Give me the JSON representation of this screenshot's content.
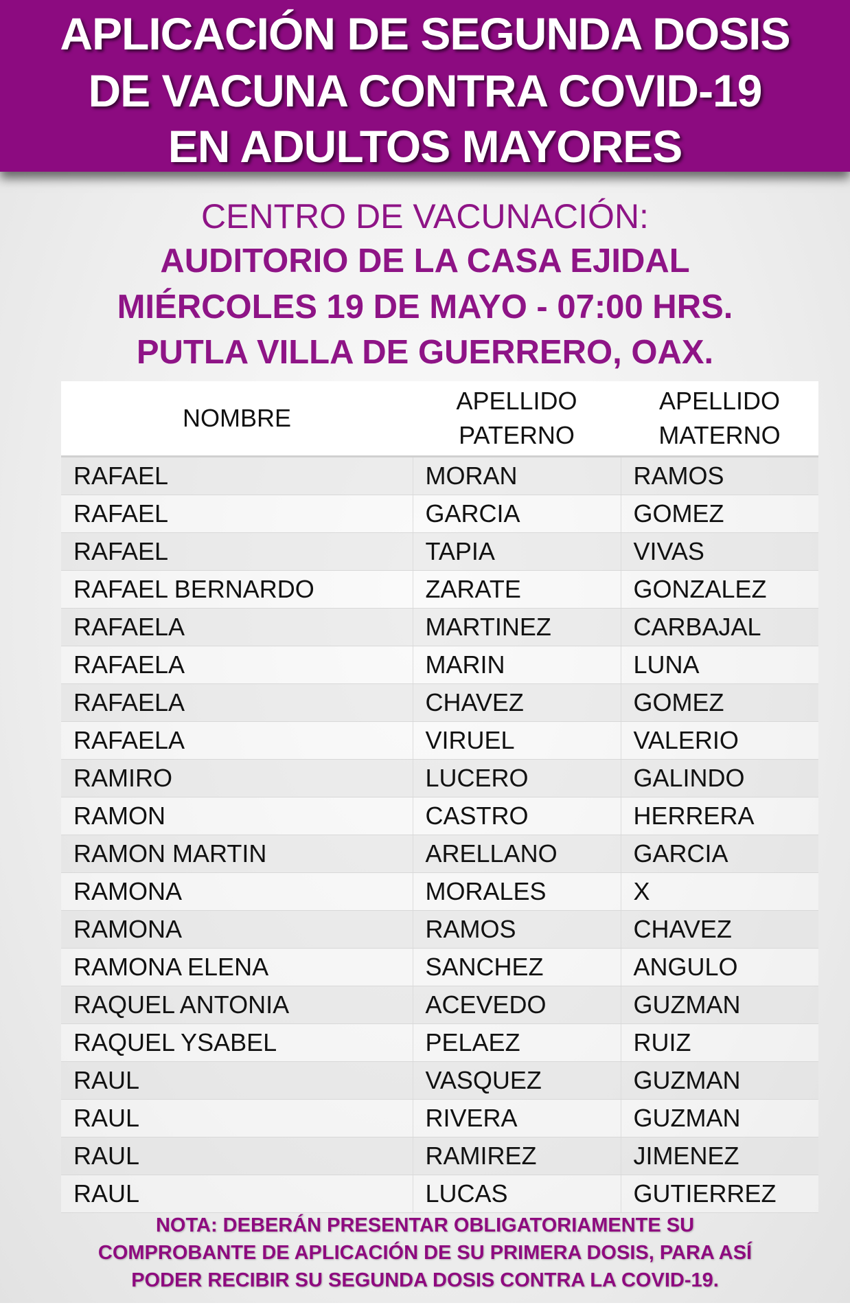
{
  "colors": {
    "banner": "#8c0b80",
    "accent": "#8e1486"
  },
  "header": {
    "lines": [
      "APLICACIÓN DE SEGUNDA DOSIS",
      "DE VACUNA CONTRA COVID-19",
      "EN ADULTOS MAYORES"
    ]
  },
  "info": {
    "center_label": "CENTRO DE VACUNACIÓN:",
    "venue": "AUDITORIO DE LA CASA EJIDAL",
    "date": "MIÉRCOLES 19 DE MAYO - 07:00 HRS.",
    "city": "PUTLA VILLA DE GUERRERO, OAX."
  },
  "table": {
    "headers": {
      "nombre": "NOMBRE",
      "paterno_1": "APELLIDO",
      "paterno_2": "PATERNO",
      "materno_1": "APELLIDO",
      "materno_2": "MATERNO"
    },
    "rows": [
      [
        "RAFAEL",
        "MORAN",
        "RAMOS"
      ],
      [
        "RAFAEL",
        "GARCIA",
        "GOMEZ"
      ],
      [
        "RAFAEL",
        "TAPIA",
        "VIVAS"
      ],
      [
        "RAFAEL BERNARDO",
        "ZARATE",
        "GONZALEZ"
      ],
      [
        "RAFAELA",
        "MARTINEZ",
        "CARBAJAL"
      ],
      [
        "RAFAELA",
        "MARIN",
        "LUNA"
      ],
      [
        "RAFAELA",
        "CHAVEZ",
        "GOMEZ"
      ],
      [
        "RAFAELA",
        "VIRUEL",
        "VALERIO"
      ],
      [
        "RAMIRO",
        "LUCERO",
        "GALINDO"
      ],
      [
        "RAMON",
        "CASTRO",
        "HERRERA"
      ],
      [
        "RAMON MARTIN",
        "ARELLANO",
        "GARCIA"
      ],
      [
        "RAMONA",
        "MORALES",
        "X"
      ],
      [
        "RAMONA",
        "RAMOS",
        "CHAVEZ"
      ],
      [
        "RAMONA ELENA",
        "SANCHEZ",
        "ANGULO"
      ],
      [
        "RAQUEL ANTONIA",
        "ACEVEDO",
        "GUZMAN"
      ],
      [
        "RAQUEL YSABEL",
        "PELAEZ",
        "RUIZ"
      ],
      [
        "RAUL",
        "VASQUEZ",
        "GUZMAN"
      ],
      [
        "RAUL",
        "RIVERA",
        "GUZMAN"
      ],
      [
        "RAUL",
        "RAMIREZ",
        "JIMENEZ"
      ],
      [
        "RAUL",
        "LUCAS",
        "GUTIERREZ"
      ]
    ]
  },
  "note": {
    "lines": [
      "NOTA: DEBERÁN PRESENTAR OBLIGATORIAMENTE SU",
      "COMPROBANTE DE APLICACIÓN DE SU PRIMERA DOSIS, PARA ASÍ",
      "PODER RECIBIR SU SEGUNDA DOSIS CONTRA LA COVID-19."
    ]
  }
}
